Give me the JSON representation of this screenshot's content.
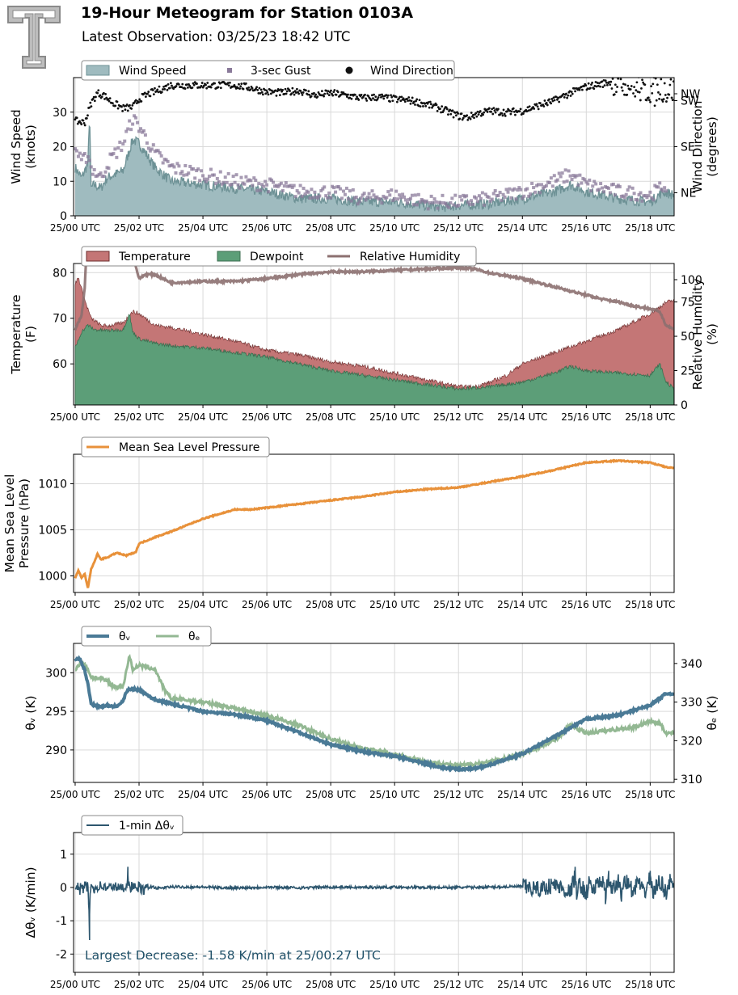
{
  "header": {
    "title": "19-Hour Meteogram for Station 0103A",
    "subtitle": "Latest Observation: 03/25/23 18:42 UTC"
  },
  "colors": {
    "wind_fill": "#9fbbbf",
    "wind_line": "#6e9296",
    "gust": "#8a7a9a",
    "direction": "#111111",
    "temperature": "#c47676",
    "temperature_line": "#6e2e2e",
    "dewpoint": "#5c9e78",
    "dewpoint_line": "#3d6e50",
    "rh": "#8c7070",
    "mslp": "#e8913a",
    "theta_v": "#4a7a96",
    "theta_e": "#93b893",
    "dtheta": "#2d566e",
    "annotation": "#1f5068"
  },
  "chart_data": [
    {
      "id": "wind",
      "type": "area",
      "title": "",
      "xlabel": "",
      "ylabel": "Wind Speed\n(knots)",
      "ylabel_right": "Wind Direction\n(degrees)",
      "x_ticks": [
        "25/00 UTC",
        "25/02 UTC",
        "25/04 UTC",
        "25/06 UTC",
        "25/08 UTC",
        "25/10 UTC",
        "25/12 UTC",
        "25/14 UTC",
        "25/16 UTC",
        "25/18 UTC"
      ],
      "x_range_hours": [
        -0.05,
        18.75
      ],
      "ylim": [
        0,
        40
      ],
      "y_ticks": [
        0,
        10,
        20,
        30
      ],
      "ylim_right": [
        90,
        360
      ],
      "y_ticks_right": [
        {
          "value": 135,
          "label": "NE"
        },
        {
          "value": 225,
          "label": "SE"
        },
        {
          "value": 315,
          "label": "SW"
        },
        {
          "value": 405,
          "label": "NW"
        }
      ],
      "grid": true,
      "legend": {
        "placement": "top-left",
        "labels": [
          "Wind Speed",
          "3-sec Gust",
          "Wind Direction"
        ]
      },
      "series": [
        {
          "name": "Wind Speed",
          "style": "area",
          "x": [
            0,
            0.2,
            0.4,
            0.45,
            0.5,
            0.6,
            0.8,
            1.0,
            1.5,
            1.8,
            2.0,
            2.5,
            3.0,
            4.0,
            5.0,
            6.0,
            7.0,
            8.0,
            9.0,
            10.0,
            11.0,
            11.5,
            12.0,
            13.0,
            14.0,
            15.0,
            15.5,
            16.0,
            17.0,
            18.0,
            18.4,
            18.75
          ],
          "values": [
            14,
            11,
            15,
            30,
            8,
            9,
            8,
            11,
            13,
            22,
            21,
            14,
            10,
            9,
            8,
            7,
            5,
            5,
            4,
            4,
            3,
            2.5,
            3,
            3.5,
            5,
            7,
            9,
            7,
            5,
            4,
            7,
            6
          ]
        },
        {
          "name": "3-sec Gust",
          "style": "markers",
          "x": [
            0,
            0.2,
            0.4,
            0.5,
            0.8,
            1.0,
            1.5,
            1.8,
            2.0,
            2.5,
            3.0,
            4.0,
            5.0,
            6.0,
            7.0,
            8.0,
            9.0,
            10.0,
            11.0,
            12.0,
            13.0,
            14.0,
            15.0,
            15.5,
            16.0,
            17.0,
            18.0,
            18.5
          ],
          "values": [
            20,
            15,
            18,
            14,
            11,
            15,
            21,
            28,
            26,
            18,
            14,
            12,
            10,
            9,
            7,
            7,
            5,
            6,
            4,
            4,
            5,
            7,
            10,
            12,
            9,
            7,
            6,
            9
          ]
        },
        {
          "name": "Wind Direction",
          "style": "points",
          "x": [
            0,
            0.3,
            0.5,
            0.7,
            0.9,
            1.2,
            1.5,
            1.8,
            2.0,
            2.3,
            2.6,
            3.0,
            4.0,
            5.0,
            5.5,
            6.0,
            6.5,
            7.0,
            7.5,
            8.0,
            8.5,
            9.0,
            9.5,
            10.0,
            10.5,
            11.0,
            11.5,
            12.0,
            12.3,
            12.6,
            13.0,
            13.5,
            14.0,
            14.5,
            15.0,
            15.5,
            16.0,
            16.5,
            17.0,
            17.5,
            18.0,
            18.4,
            18.75
          ],
          "values": [
            275,
            272,
            310,
            330,
            325,
            310,
            300,
            302,
            318,
            328,
            335,
            345,
            345,
            345,
            340,
            332,
            330,
            335,
            325,
            330,
            325,
            320,
            322,
            318,
            315,
            308,
            298,
            285,
            282,
            290,
            295,
            292,
            295,
            305,
            315,
            330,
            342,
            348,
            355,
            340,
            330,
            335,
            340
          ]
        }
      ]
    },
    {
      "id": "temp",
      "type": "area",
      "title": "",
      "xlabel": "",
      "ylabel": "Temperature\n(F)",
      "ylabel_right": "Relative Humidity\n(%)",
      "x_range_hours": [
        -0.05,
        18.75
      ],
      "ylim": [
        51,
        82
      ],
      "y_ticks": [
        60,
        70,
        80
      ],
      "ylim_right": [
        0,
        103
      ],
      "y_ticks_right": [
        0,
        25,
        50,
        75,
        100
      ],
      "grid": true,
      "legend": {
        "placement": "top-left",
        "labels": [
          "Temperature",
          "Dewpoint",
          "Relative Humidity"
        ]
      },
      "series": [
        {
          "name": "Temperature",
          "x": [
            0,
            0.1,
            0.3,
            0.4,
            0.5,
            0.8,
            1.0,
            1.5,
            1.8,
            2.0,
            2.5,
            3.0,
            4.0,
            5.0,
            6.0,
            7.0,
            8.0,
            9.0,
            10.0,
            11.0,
            12.0,
            12.5,
            13.0,
            13.5,
            14.0,
            15.0,
            16.0,
            17.0,
            18.0,
            18.5,
            18.75
          ],
          "values": [
            77.5,
            79,
            74,
            72,
            70,
            68.5,
            68.3,
            69,
            71.5,
            71,
            68.5,
            68,
            66.5,
            65,
            63,
            62,
            60.5,
            59.5,
            58,
            56.5,
            55,
            55,
            56,
            57.5,
            60,
            62.5,
            65,
            67.5,
            71,
            73.5,
            74
          ]
        },
        {
          "name": "Dewpoint",
          "x": [
            0,
            0.2,
            0.4,
            0.6,
            1.0,
            1.5,
            1.7,
            1.8,
            2.0,
            2.5,
            3.0,
            4.0,
            5.0,
            6.0,
            7.0,
            8.0,
            9.0,
            10.0,
            11.0,
            12.0,
            13.0,
            14.0,
            15.0,
            15.5,
            16.0,
            17.0,
            18.0,
            18.3,
            18.5,
            18.75
          ],
          "values": [
            63.5,
            67,
            68.5,
            67.5,
            67.3,
            67.5,
            71,
            67,
            65.5,
            64.5,
            64,
            63.5,
            62.5,
            61.5,
            60,
            58.5,
            57.5,
            56.5,
            55.5,
            54.5,
            55,
            56,
            58,
            59.5,
            58.5,
            58,
            57.5,
            60,
            56,
            54.5
          ]
        },
        {
          "name": "Relative Humidity",
          "x": [
            0,
            0.2,
            0.3,
            0.35,
            1.8,
            2.0,
            2.2,
            2.5,
            3.0,
            4.0,
            5.0,
            6.0,
            7.0,
            8.0,
            9.0,
            10.0,
            11.0,
            12.0,
            12.5,
            13.0,
            14.0,
            15.0,
            16.0,
            16.5,
            17.0,
            17.5,
            18.0,
            18.3,
            18.5,
            18.75
          ],
          "values": [
            55,
            65,
            85,
            110,
            110,
            92,
            95,
            95,
            89,
            90,
            90,
            92,
            95,
            97,
            97,
            98,
            99,
            100,
            99,
            96,
            92,
            86,
            80,
            77,
            75,
            72,
            70,
            68,
            58,
            55
          ]
        }
      ]
    },
    {
      "id": "pressure",
      "type": "line",
      "title": "",
      "xlabel": "",
      "ylabel": "Mean Sea Level\nPressure (hPa)",
      "x_range_hours": [
        -0.05,
        18.75
      ],
      "ylim": [
        998.2,
        1013.2
      ],
      "y_ticks": [
        1000,
        1005,
        1010
      ],
      "grid": true,
      "legend": {
        "placement": "top-left",
        "labels": [
          "Mean Sea Level Pressure"
        ]
      },
      "series": [
        {
          "name": "Mean Sea Level Pressure",
          "x": [
            0,
            0.1,
            0.2,
            0.3,
            0.4,
            0.5,
            0.6,
            0.7,
            0.8,
            1.0,
            1.3,
            1.6,
            1.9,
            2.0,
            2.5,
            3.0,
            3.5,
            4.0,
            5.0,
            5.5,
            6.0,
            7.0,
            8.0,
            9.0,
            10.0,
            11.0,
            12.0,
            13.0,
            14.0,
            15.0,
            16.0,
            17.0,
            18.0,
            18.5,
            18.75
          ],
          "values": [
            999.8,
            1000.6,
            999.8,
            1000.2,
            998.7,
            1000.7,
            1001.5,
            1002.4,
            1001.8,
            1002.0,
            1002.5,
            1002.2,
            1002.6,
            1003.5,
            1004.2,
            1004.8,
            1005.5,
            1006.2,
            1007.2,
            1007.2,
            1007.4,
            1007.8,
            1008.2,
            1008.6,
            1009.1,
            1009.4,
            1009.6,
            1010.2,
            1010.8,
            1011.5,
            1012.3,
            1012.5,
            1012.3,
            1011.8,
            1011.7
          ]
        }
      ]
    },
    {
      "id": "theta",
      "type": "line",
      "title": "",
      "xlabel": "",
      "ylabel": "θᵥ (K)",
      "ylabel_right": "θₑ (K)",
      "x_range_hours": [
        -0.05,
        18.75
      ],
      "ylim": [
        285.8,
        303.8
      ],
      "y_ticks": [
        290,
        295,
        300
      ],
      "ylim_right": [
        309.2,
        345.2
      ],
      "y_ticks_right": [
        310,
        320,
        330,
        340
      ],
      "grid": true,
      "legend": {
        "placement": "top-left",
        "labels": [
          "θᵥ",
          "θₑ"
        ]
      },
      "series": [
        {
          "name": "θᵥ",
          "x": [
            0,
            0.15,
            0.3,
            0.4,
            0.5,
            0.6,
            0.8,
            1.0,
            1.1,
            1.3,
            1.5,
            1.6,
            1.7,
            2.0,
            2.5,
            3.0,
            4.0,
            5.0,
            6.0,
            7.0,
            8.0,
            9.0,
            10.0,
            11.0,
            11.5,
            12.0,
            12.5,
            13.0,
            14.0,
            15.0,
            16.0,
            17.0,
            18.0,
            18.5,
            18.75
          ],
          "values": [
            301.8,
            301.8,
            300.3,
            298.5,
            296.0,
            295.8,
            295.6,
            295.8,
            295.6,
            295.7,
            296.3,
            297.5,
            297.9,
            297.8,
            296.5,
            296.0,
            295.0,
            294.6,
            293.8,
            292.3,
            290.7,
            289.8,
            289.2,
            288.2,
            287.7,
            287.5,
            287.6,
            288.1,
            289.5,
            291.7,
            294.0,
            294.5,
            295.8,
            297.3,
            297.3
          ]
        },
        {
          "name": "θₑ",
          "x": [
            0,
            0.2,
            0.4,
            0.5,
            0.8,
            1.0,
            1.2,
            1.5,
            1.7,
            1.8,
            2.0,
            2.5,
            2.8,
            3.0,
            4.0,
            5.0,
            6.0,
            7.0,
            8.0,
            9.0,
            10.0,
            11.0,
            12.0,
            13.0,
            14.0,
            15.0,
            15.5,
            16.0,
            16.5,
            17.0,
            17.5,
            18.0,
            18.3,
            18.5,
            18.75
          ],
          "values": [
            338.5,
            340.5,
            338.5,
            336.5,
            336.0,
            335.5,
            334.0,
            334.0,
            342.0,
            338.5,
            339.5,
            338.5,
            333.0,
            331.0,
            330.0,
            328.5,
            326.5,
            324.0,
            320.5,
            318.0,
            316.5,
            314.5,
            313.5,
            314.5,
            316.5,
            320.0,
            324.0,
            322.0,
            322.5,
            323.0,
            323.5,
            325.0,
            324.5,
            322.0,
            322.0
          ]
        }
      ]
    },
    {
      "id": "dtheta",
      "type": "line",
      "title": "",
      "xlabel": "",
      "ylabel": "Δθᵥ (K/min)",
      "x_range_hours": [
        -0.05,
        18.75
      ],
      "ylim": [
        -2.55,
        1.65
      ],
      "y_ticks": [
        -2,
        -1,
        0,
        1
      ],
      "grid": true,
      "legend": {
        "placement": "top-left",
        "labels": [
          "1-min Δθᵥ"
        ]
      },
      "annotation": "Largest Decrease: -1.58 K/min at 25/00:27 UTC",
      "series": [
        {
          "name": "1-min Δθᵥ",
          "x": [
            0,
            0.1,
            0.15,
            0.2,
            0.25,
            0.3,
            0.35,
            0.4,
            0.42,
            0.45,
            0.47,
            0.5,
            0.6,
            0.8,
            1.0,
            1.2,
            1.4,
            1.6,
            1.65,
            1.7,
            1.8,
            1.9,
            2.0,
            2.1,
            2.2,
            2.4,
            2.6,
            3.0,
            4.0,
            5.0,
            6.0,
            7.0,
            8.0,
            9.0,
            10.0,
            11.0,
            12.0,
            13.0,
            14.0,
            14.5,
            15.0,
            15.5,
            15.6,
            15.65,
            15.7,
            15.8,
            16.0,
            16.1,
            16.2,
            16.5,
            16.6,
            16.7,
            16.8,
            17.0,
            17.1,
            17.2,
            17.5,
            17.6,
            17.8,
            18.0,
            18.1,
            18.3,
            18.5,
            18.6,
            18.75
          ],
          "values": [
            -0.1,
            0.05,
            -0.15,
            0.25,
            -0.2,
            0.2,
            -0.1,
            0.1,
            -0.5,
            -1.58,
            -0.3,
            0.1,
            -0.05,
            0.1,
            -0.05,
            0.08,
            -0.05,
            0.05,
            0.62,
            -0.1,
            0.12,
            -0.1,
            0.05,
            -0.15,
            -0.08,
            0.05,
            -0.05,
            0.03,
            0.02,
            -0.03,
            0.02,
            -0.02,
            0.02,
            0.0,
            0.02,
            0.0,
            0.0,
            0.02,
            0.05,
            -0.1,
            0.15,
            -0.25,
            0.3,
            0.62,
            -0.45,
            0.2,
            -0.35,
            0.35,
            -0.15,
            0.4,
            -0.5,
            0.5,
            -0.2,
            0.3,
            -0.4,
            0.45,
            -0.3,
            0.4,
            -0.35,
            0.5,
            -0.3,
            0.35,
            -0.25,
            0.3,
            0.05
          ]
        }
      ]
    }
  ]
}
